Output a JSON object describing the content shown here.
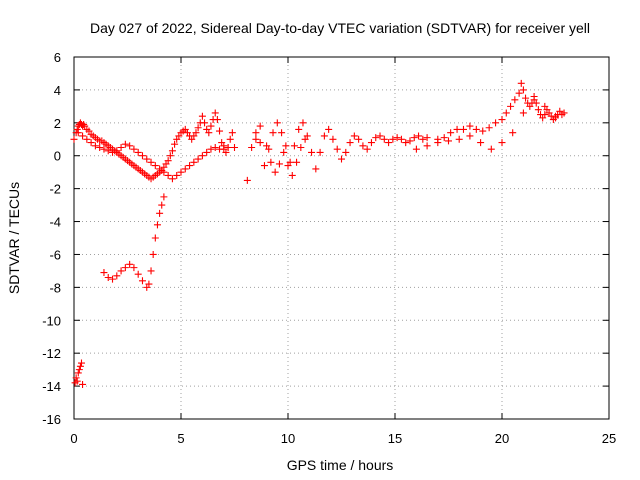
{
  "chart_data": {
    "type": "scatter",
    "title": "Day 027 of 2022, Sidereal Day-to-day VTEC variation (SDTVAR) for receiver yell",
    "xlabel": "GPS time / hours",
    "ylabel": "SDTVAR / TECUs",
    "xlim": [
      0,
      25
    ],
    "ylim": [
      -16,
      6
    ],
    "xticks": [
      0,
      5,
      10,
      15,
      20,
      25
    ],
    "yticks": [
      -16,
      -14,
      -12,
      -10,
      -8,
      -6,
      -4,
      -2,
      0,
      2,
      4,
      6
    ],
    "grid": true,
    "marker": "+",
    "colors": {
      "series": "#ff0000",
      "grid": "#a0a0a0",
      "frame": "#000000"
    },
    "series": [
      {
        "name": "SDTVAR",
        "color": "#ff0000",
        "x": [
          0.0,
          0.1,
          0.15,
          0.2,
          0.25,
          0.3,
          0.35,
          0.4,
          0.45,
          0.5,
          0.6,
          0.7,
          0.8,
          0.9,
          1.0,
          1.1,
          1.2,
          1.3,
          1.4,
          1.5,
          1.6,
          1.7,
          1.8,
          1.9,
          2.0,
          2.1,
          2.2,
          2.3,
          2.4,
          2.5,
          2.6,
          2.7,
          2.8,
          2.9,
          3.0,
          3.1,
          3.2,
          3.3,
          3.4,
          3.5,
          3.6,
          3.7,
          3.8,
          3.9,
          4.0,
          4.1,
          4.2,
          4.3,
          4.4,
          4.5,
          4.6,
          4.7,
          4.8,
          4.9,
          5.0,
          5.1,
          5.2,
          5.3,
          5.4,
          5.5,
          5.6,
          5.7,
          5.8,
          5.9,
          6.0,
          6.1,
          6.2,
          6.3,
          6.4,
          6.5,
          6.6,
          6.7,
          6.8,
          6.9,
          7.0,
          7.1,
          7.2,
          7.3,
          7.4,
          7.5,
          8.1,
          8.3,
          8.5,
          8.7,
          8.9,
          9.1,
          9.3,
          9.5,
          9.7,
          9.9,
          10.1,
          10.3,
          10.5,
          10.7,
          10.9,
          11.1,
          11.3,
          11.5,
          11.7,
          11.9,
          12.1,
          12.3,
          12.5,
          12.7,
          12.9,
          13.1,
          13.3,
          13.5,
          13.7,
          13.9,
          14.1,
          14.3,
          14.5,
          14.7,
          14.9,
          15.1,
          15.3,
          15.5,
          15.7,
          15.9,
          16.1,
          16.3,
          16.5,
          17.0,
          17.3,
          17.6,
          17.9,
          18.2,
          18.5,
          18.8,
          19.1,
          19.4,
          19.7,
          20.0,
          20.2,
          20.4,
          20.6,
          20.8,
          20.9,
          21.0,
          21.1,
          21.2,
          21.3,
          21.4,
          21.5,
          21.6,
          21.7,
          21.8,
          21.9,
          22.0,
          22.1,
          22.2,
          22.3,
          22.4,
          22.5,
          22.6,
          22.7,
          22.8,
          22.9,
          0.2,
          0.4,
          0.6,
          0.8,
          1.0,
          1.2,
          1.4,
          1.6,
          1.8,
          2.0,
          2.2,
          2.4,
          2.6,
          2.8,
          3.0,
          3.2,
          3.4,
          3.6,
          3.8,
          4.0,
          4.2,
          4.4,
          4.6,
          4.8,
          5.0,
          5.2,
          5.4,
          5.6,
          5.8,
          6.0,
          6.2,
          6.4,
          6.6,
          6.8,
          7.0,
          7.2,
          1.4,
          1.6,
          1.8,
          2.0,
          2.2,
          2.4,
          2.6,
          2.8,
          3.0,
          3.2,
          3.4,
          3.5,
          3.6,
          3.7,
          3.8,
          3.9,
          4.0,
          4.1,
          4.2,
          8.5,
          8.7,
          9.0,
          9.2,
          9.4,
          9.6,
          9.8,
          10.0,
          10.2,
          10.4,
          10.6,
          10.8,
          16.0,
          16.5,
          17.0,
          17.5,
          18.0,
          18.5,
          19.0,
          19.5,
          20.0,
          20.5,
          21.0,
          21.5,
          22.0,
          22.5,
          0.05,
          0.1,
          0.15,
          0.2,
          0.25,
          0.3,
          0.35,
          0.4
        ],
        "y": [
          1.0,
          1.4,
          1.6,
          1.8,
          1.9,
          2.0,
          1.9,
          1.8,
          1.9,
          1.8,
          1.6,
          1.5,
          1.3,
          1.2,
          1.1,
          1.0,
          0.9,
          0.9,
          0.8,
          0.7,
          0.6,
          0.5,
          0.4,
          0.3,
          0.2,
          0.1,
          0.0,
          -0.1,
          -0.2,
          -0.3,
          -0.4,
          -0.5,
          -0.6,
          -0.7,
          -0.8,
          -0.9,
          -1.0,
          -1.1,
          -1.2,
          -1.3,
          -1.4,
          -1.3,
          -1.2,
          -1.1,
          -1.0,
          -0.9,
          -0.7,
          -0.5,
          -0.3,
          0.0,
          0.3,
          0.7,
          1.0,
          1.2,
          1.4,
          1.5,
          1.6,
          1.4,
          1.2,
          1.0,
          1.2,
          1.4,
          1.7,
          2.0,
          2.4,
          2.0,
          1.6,
          1.4,
          1.8,
          2.2,
          2.6,
          2.2,
          1.5,
          0.8,
          0.4,
          0.2,
          0.5,
          1.0,
          1.4,
          0.5,
          -1.5,
          0.5,
          1.4,
          0.8,
          -0.6,
          0.4,
          1.4,
          2.0,
          1.4,
          0.6,
          -0.4,
          0.6,
          1.6,
          2.0,
          1.2,
          0.2,
          -0.8,
          0.2,
          1.2,
          1.6,
          1.0,
          0.4,
          -0.2,
          0.2,
          0.8,
          1.2,
          1.0,
          0.6,
          0.4,
          0.8,
          1.1,
          1.2,
          1.0,
          0.8,
          1.0,
          1.1,
          1.0,
          0.8,
          0.9,
          1.1,
          1.2,
          1.0,
          1.1,
          1.0,
          1.1,
          1.4,
          1.6,
          1.6,
          1.8,
          1.6,
          1.5,
          1.7,
          2.0,
          2.2,
          2.6,
          3.0,
          3.4,
          3.8,
          4.4,
          4.0,
          3.5,
          3.2,
          3.0,
          3.2,
          3.6,
          3.2,
          2.8,
          2.5,
          2.3,
          2.5,
          2.8,
          2.6,
          2.4,
          2.2,
          2.3,
          2.5,
          2.7,
          2.5,
          2.6,
          1.4,
          1.2,
          1.0,
          0.8,
          0.6,
          0.5,
          0.4,
          0.3,
          0.2,
          0.3,
          0.5,
          0.7,
          0.6,
          0.4,
          0.2,
          0.0,
          -0.2,
          -0.4,
          -0.6,
          -0.8,
          -1.0,
          -1.2,
          -1.4,
          -1.2,
          -1.0,
          -0.8,
          -0.6,
          -0.4,
          -0.2,
          0.0,
          0.2,
          0.4,
          0.5,
          0.4,
          0.6,
          0.5,
          -7.1,
          -7.4,
          -7.5,
          -7.3,
          -7.0,
          -6.8,
          -6.6,
          -6.8,
          -7.2,
          -7.6,
          -8.0,
          -7.8,
          -7.0,
          -6.0,
          -5.0,
          -4.2,
          -3.5,
          -3.0,
          -2.5,
          1.0,
          1.8,
          0.6,
          -0.4,
          -1.0,
          -0.5,
          0.2,
          -0.6,
          -1.2,
          -0.4,
          0.5,
          1.0,
          0.4,
          0.6,
          0.8,
          0.9,
          1.0,
          1.2,
          0.8,
          0.4,
          0.8,
          1.4,
          2.6,
          3.4,
          3.0,
          2.4,
          -13.8,
          -13.5,
          -13.7,
          -13.2,
          -13.0,
          -12.8,
          -12.6,
          -13.9
        ]
      }
    ]
  }
}
